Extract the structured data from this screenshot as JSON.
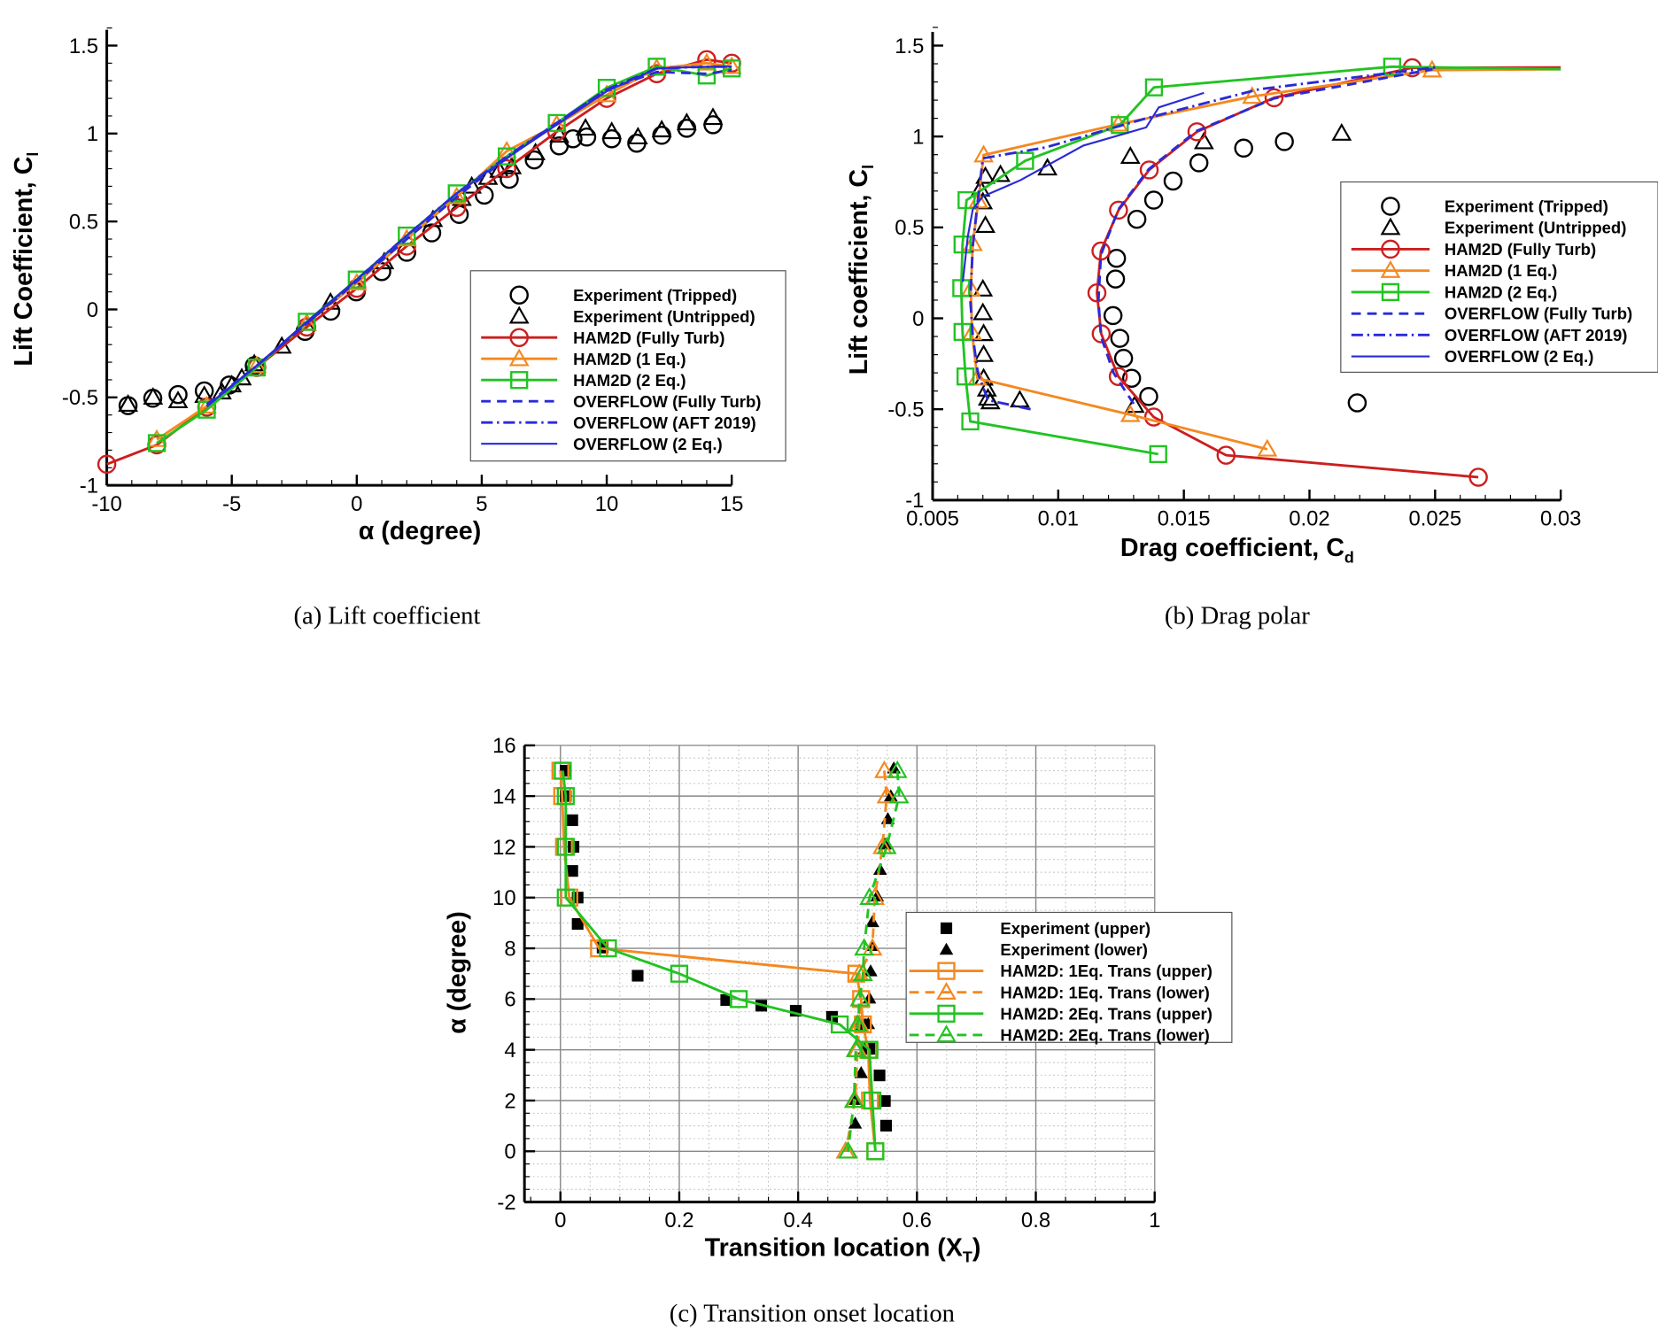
{
  "colors": {
    "red": "#cc1f1f",
    "orange": "#f5881f",
    "green": "#22c322",
    "blue": "#2a2ad8",
    "black": "#000000"
  },
  "chart_data": [
    {
      "type": "scatter+line",
      "caption": "(a) Lift coefficient",
      "xlabel": "α (degree)",
      "xlabel_sub": "",
      "ylabel": "Lift Coefficient, C",
      "ylabel_sub": "l",
      "xlim": [
        -10,
        15
      ],
      "ylim": [
        -1,
        1.6
      ],
      "xticks": [
        -10,
        -5,
        0,
        5,
        10,
        15
      ],
      "xtick_labels": [
        "-10",
        "-5",
        "0",
        "5",
        "10",
        "15"
      ],
      "yticks": [
        -1,
        -0.5,
        0,
        0.5,
        1,
        1.5
      ],
      "ytick_labels": [
        "-1",
        "-0.5",
        "0",
        "0.5",
        "1",
        "1.5"
      ],
      "grid": false,
      "legend_position": "lower-right",
      "series": [
        {
          "name": "Experiment (Tripped)",
          "color": "#000000",
          "marker": "circle",
          "line": "none",
          "x": [
            -9.15,
            -8.16,
            -7.15,
            -6.1,
            -5.1,
            -4.1,
            -2.07,
            -1.04,
            -0.02,
            1.0,
            2.0,
            3.0,
            4.1,
            5.1,
            6.1,
            7.1,
            8.1,
            8.65,
            9.2,
            10.2,
            11.2,
            12.2,
            13.2,
            14.25
          ],
          "y": [
            -0.547,
            -0.505,
            -0.484,
            -0.463,
            -0.43,
            -0.32,
            -0.125,
            -0.01,
            0.1,
            0.215,
            0.325,
            0.435,
            0.54,
            0.65,
            0.74,
            0.85,
            0.93,
            0.97,
            0.98,
            0.97,
            0.945,
            0.99,
            1.03,
            1.05
          ]
        },
        {
          "name": "Experiment (Untripped)",
          "color": "#000000",
          "marker": "triangle",
          "line": "none",
          "x": [
            -9.15,
            -8.15,
            -7.15,
            -6.1,
            -5.4,
            -5.0,
            -4.6,
            -4.1,
            -3.0,
            -2.0,
            -1.05,
            1.1,
            3.05,
            4.2,
            4.6,
            5.25,
            5.7,
            6.2,
            7.15,
            8.1,
            9.15,
            10.2,
            11.25,
            12.2,
            13.2,
            14.25
          ],
          "y": [
            -0.54,
            -0.5,
            -0.52,
            -0.49,
            -0.47,
            -0.43,
            -0.39,
            -0.31,
            -0.21,
            -0.08,
            0.04,
            0.27,
            0.51,
            0.63,
            0.7,
            0.75,
            0.79,
            0.81,
            0.89,
            0.99,
            1.03,
            1.01,
            0.98,
            1.02,
            1.06,
            1.09
          ]
        },
        {
          "name": "HAM2D (Fully Turb)",
          "color": "#cc1f1f",
          "marker": "circle",
          "line": "solid",
          "x": [
            -10,
            -8,
            -6,
            -4,
            -2,
            0,
            2,
            4,
            6,
            8,
            10,
            12,
            14,
            15
          ],
          "y": [
            -0.88,
            -0.77,
            -0.555,
            -0.33,
            -0.1,
            0.12,
            0.36,
            0.58,
            0.8,
            1.01,
            1.2,
            1.34,
            1.42,
            1.4
          ]
        },
        {
          "name": "HAM2D (1 Eq.)",
          "color": "#f5881f",
          "marker": "triangle",
          "line": "solid",
          "x": [
            -8,
            -6,
            -4,
            -2,
            0,
            2,
            4,
            6,
            8,
            10,
            12,
            14,
            15
          ],
          "y": [
            -0.74,
            -0.55,
            -0.32,
            -0.08,
            0.15,
            0.4,
            0.64,
            0.9,
            1.05,
            1.22,
            1.37,
            1.4,
            1.38
          ]
        },
        {
          "name": "HAM2D (2 Eq.)",
          "color": "#22c322",
          "marker": "square",
          "line": "solid",
          "x": [
            -8,
            -6,
            -4,
            -2,
            0,
            2,
            4,
            6,
            8,
            10,
            12,
            14,
            15
          ],
          "y": [
            -0.76,
            -0.57,
            -0.33,
            -0.07,
            0.17,
            0.42,
            0.66,
            0.87,
            1.06,
            1.26,
            1.38,
            1.33,
            1.37
          ]
        },
        {
          "name": "OVERFLOW (Fully Turb)",
          "color": "#2a2ad8",
          "marker": "none",
          "line": "dashed",
          "x": [
            -6,
            -4,
            -2,
            0,
            2,
            4,
            6,
            8,
            10,
            12,
            14,
            15
          ],
          "y": [
            -0.54,
            -0.32,
            -0.08,
            0.16,
            0.4,
            0.64,
            0.86,
            1.06,
            1.25,
            1.35,
            1.34,
            1.36
          ]
        },
        {
          "name": "OVERFLOW (AFT 2019)",
          "color": "#2a2ad8",
          "marker": "none",
          "line": "dashdot",
          "x": [
            -6,
            -4,
            -2,
            0,
            2,
            4,
            6,
            8,
            10,
            12,
            14,
            15
          ],
          "y": [
            -0.55,
            -0.32,
            -0.08,
            0.17,
            0.42,
            0.66,
            0.87,
            1.06,
            1.25,
            1.37,
            1.38,
            1.38
          ]
        },
        {
          "name": "OVERFLOW (2 Eq.)",
          "color": "#2a2ad8",
          "marker": "none",
          "line": "thin",
          "x": [
            -6,
            -4,
            -2,
            0,
            2,
            4,
            6,
            8,
            10,
            12,
            14,
            15
          ],
          "y": [
            -0.55,
            -0.32,
            -0.07,
            0.17,
            0.42,
            0.66,
            0.86,
            1.05,
            1.24,
            1.37,
            1.38,
            1.38
          ]
        }
      ]
    },
    {
      "type": "scatter+line",
      "caption": "(b) Drag polar",
      "xlabel": "Drag coefficient, C",
      "xlabel_sub": "d",
      "ylabel": "Lift coefficient, C",
      "ylabel_sub": "l",
      "xlim": [
        0.005,
        0.03
      ],
      "ylim": [
        -1,
        1.6
      ],
      "xticks": [
        0.005,
        0.01,
        0.015,
        0.02,
        0.025,
        0.03
      ],
      "xtick_labels": [
        "0.005",
        "0.01",
        "0.015",
        "0.02",
        "0.025",
        "0.03"
      ],
      "yticks": [
        -1,
        -0.5,
        0,
        0.5,
        1,
        1.5
      ],
      "ytick_labels": [
        "-1",
        "-0.5",
        "0",
        "0.5",
        "1",
        "1.5"
      ],
      "grid": false,
      "legend_position": "right",
      "series": [
        {
          "name": "Experiment (Tripped)",
          "color": "#000000",
          "marker": "circle",
          "line": "none",
          "x": [
            0.01313,
            0.0138,
            0.01457,
            0.0156,
            0.01738,
            0.019,
            0.01232,
            0.01228,
            0.01218,
            0.01245,
            0.0126,
            0.01292,
            0.0136,
            0.0219
          ],
          "y": [
            0.545,
            0.65,
            0.755,
            0.855,
            0.936,
            0.972,
            0.33,
            0.216,
            0.015,
            -0.11,
            -0.22,
            -0.33,
            -0.43,
            -0.465
          ]
        },
        {
          "name": "Experiment (Untripped)",
          "color": "#000000",
          "marker": "triangle",
          "line": "none",
          "x": [
            0.0071,
            0.0077,
            0.0069,
            0.007,
            0.0071,
            0.007,
            0.007,
            0.00703,
            0.00703,
            0.00703,
            0.00716,
            0.0072,
            0.0073,
            0.00847,
            0.00957,
            0.01287,
            0.0158,
            0.02128,
            0.01304
          ],
          "y": [
            0.78,
            0.79,
            0.71,
            0.64,
            0.51,
            0.16,
            0.03,
            -0.085,
            -0.2,
            -0.33,
            -0.39,
            -0.44,
            -0.46,
            -0.45,
            0.826,
            0.89,
            0.97,
            1.017,
            -0.48
          ]
        },
        {
          "name": "HAM2D (Fully Turb)",
          "color": "#cc1f1f",
          "marker": "circle",
          "line": "solid",
          "last_unmarked": true,
          "x": [
            0.02672,
            0.01668,
            0.0138,
            0.01239,
            0.01171,
            0.01154,
            0.0117,
            0.0124,
            0.01362,
            0.01552,
            0.01859,
            0.02409,
            0.03
          ],
          "y": [
            -0.874,
            -0.753,
            -0.543,
            -0.32,
            -0.085,
            0.14,
            0.37,
            0.595,
            0.816,
            1.026,
            1.213,
            1.378,
            1.38
          ]
        },
        {
          "name": "HAM2D (1 Eq.)",
          "color": "#f5881f",
          "marker": "triangle",
          "line": "solid",
          "last_unmarked": true,
          "x": [
            0.01832,
            0.01287,
            0.00678,
            0.00657,
            0.00652,
            0.0066,
            0.00682,
            0.00703,
            0.01239,
            0.01772,
            0.02488,
            0.03
          ],
          "y": [
            -0.72,
            -0.53,
            -0.33,
            -0.08,
            0.16,
            0.41,
            0.645,
            0.898,
            1.067,
            1.22,
            1.365,
            1.37
          ]
        },
        {
          "name": "HAM2D (2 Eq.)",
          "color": "#22c322",
          "marker": "square",
          "line": "solid",
          "last_unmarked": true,
          "x": [
            0.01398,
            0.0065,
            0.00631,
            0.00619,
            0.00614,
            0.00619,
            0.00635,
            0.00868,
            0.01245,
            0.01381,
            0.02329,
            0.03
          ],
          "y": [
            -0.747,
            -0.567,
            -0.32,
            -0.075,
            0.166,
            0.406,
            0.65,
            0.866,
            1.063,
            1.27,
            1.384,
            1.37
          ]
        },
        {
          "name": "OVERFLOW (Fully Turb)",
          "color": "#2a2ad8",
          "marker": "none",
          "line": "dashed",
          "x": [
            0.013,
            0.0122,
            0.0117,
            0.0116,
            0.0117,
            0.0124,
            0.0136,
            0.0155,
            0.0186,
            0.0249
          ],
          "y": [
            -0.47,
            -0.3,
            -0.1,
            0.1,
            0.35,
            0.6,
            0.82,
            1.03,
            1.21,
            1.37
          ]
        },
        {
          "name": "OVERFLOW (AFT 2019)",
          "color": "#2a2ad8",
          "marker": "none",
          "line": "dashdot",
          "x": [
            0.0089,
            0.0072,
            0.0068,
            0.0066,
            0.0065,
            0.0066,
            0.0068,
            0.007,
            0.0095,
            0.0135,
            0.018,
            0.025
          ],
          "y": [
            -0.5,
            -0.45,
            -0.3,
            -0.1,
            0.1,
            0.4,
            0.65,
            0.88,
            0.94,
            1.1,
            1.26,
            1.38
          ]
        },
        {
          "name": "OVERFLOW (2 Eq.)",
          "color": "#2a2ad8",
          "marker": "none",
          "line": "thin",
          "x": [
            0.0062,
            0.0064,
            0.0066,
            0.007,
            0.0085,
            0.011,
            0.0135,
            0.014,
            0.0158
          ],
          "y": [
            0.2,
            0.45,
            0.6,
            0.67,
            0.76,
            0.95,
            1.05,
            1.16,
            1.24
          ]
        }
      ]
    },
    {
      "type": "scatter+line",
      "caption": "(c) Transition onset location",
      "xlabel": "Transition location (X",
      "xlabel_sub": "T",
      "xlabel_tail": ")",
      "ylabel": "α (degree)",
      "ylabel_sub": "",
      "xlim": [
        -0.06,
        1
      ],
      "ylim": [
        -2,
        16
      ],
      "xticks": [
        0,
        0.2,
        0.4,
        0.6,
        0.8,
        1
      ],
      "xtick_labels": [
        "0",
        "0.2",
        "0.4",
        "0.6",
        "0.8",
        "1"
      ],
      "yticks": [
        -2,
        0,
        2,
        4,
        6,
        8,
        10,
        12,
        14,
        16
      ],
      "ytick_labels": [
        "-2",
        "0",
        "2",
        "4",
        "6",
        "8",
        "10",
        "12",
        "14",
        "16"
      ],
      "grid": true,
      "legend_position": "right",
      "series": [
        {
          "name": "Experiment (upper)",
          "color": "#000000",
          "marker": "square-filled",
          "line": "none",
          "x": [
            0.009,
            0.009,
            0.02,
            0.022,
            0.02,
            0.029,
            0.029,
            0.071,
            0.13,
            0.279,
            0.338,
            0.396,
            0.457,
            0.506,
            0.525,
            0.537,
            0.546,
            0.548
          ],
          "y": [
            15,
            14,
            13.05,
            12,
            11.05,
            10,
            8.96,
            8.03,
            6.92,
            5.96,
            5.74,
            5.54,
            5.3,
            5.0,
            4.04,
            2.99,
            1.98,
            1.01
          ]
        },
        {
          "name": "Experiment (lower)",
          "color": "#000000",
          "marker": "triangle-filled",
          "line": "none",
          "x": [
            0.561,
            0.556,
            0.551,
            0.546,
            0.538,
            0.533,
            0.525,
            0.525,
            0.522,
            0.52,
            0.518,
            0.512,
            0.506,
            0.497,
            0.496
          ],
          "y": [
            15.1,
            14.0,
            13.1,
            12.1,
            11.1,
            10.05,
            9.04,
            8.1,
            7.1,
            6.03,
            5.02,
            4.02,
            3.09,
            2.03,
            1.1
          ]
        },
        {
          "name": "HAM2D: 1Eq. Trans (upper)",
          "color": "#f5881f",
          "marker": "square",
          "line": "solid",
          "x": [
            0.0,
            0.003,
            0.006,
            0.015,
            0.065,
            0.498,
            0.506,
            0.509,
            0.518,
            0.521,
            0.53
          ],
          "y": [
            15,
            14,
            12,
            10,
            8,
            7,
            6,
            5,
            4,
            2,
            0
          ]
        },
        {
          "name": "HAM2D: 1Eq. Trans (lower)",
          "color": "#f5881f",
          "marker": "triangle",
          "line": "dashed",
          "x": [
            0.545,
            0.549,
            0.542,
            0.529,
            0.525,
            0.503,
            0.504,
            0.503,
            0.5,
            0.496,
            0.48
          ],
          "y": [
            15,
            14,
            12,
            10,
            8,
            7,
            6,
            5,
            4,
            2,
            0
          ]
        },
        {
          "name": "HAM2D: 2Eq. Trans (upper)",
          "color": "#22c322",
          "marker": "square",
          "line": "solid",
          "x": [
            0.004,
            0.009,
            0.009,
            0.009,
            0.08,
            0.2,
            0.3,
            0.47,
            0.52,
            0.525,
            0.53
          ],
          "y": [
            15,
            14,
            12,
            10,
            8,
            7,
            6,
            5,
            4,
            2,
            0
          ]
        },
        {
          "name": "HAM2D: 2Eq. Trans (lower)",
          "color": "#22c322",
          "marker": "triangle",
          "line": "dashed",
          "x": [
            0.567,
            0.57,
            0.549,
            0.52,
            0.511,
            0.509,
            0.504,
            0.5,
            0.497,
            0.494,
            0.484
          ],
          "y": [
            15,
            14,
            12,
            10,
            8,
            7,
            6,
            5,
            4,
            2,
            0
          ]
        }
      ]
    }
  ]
}
